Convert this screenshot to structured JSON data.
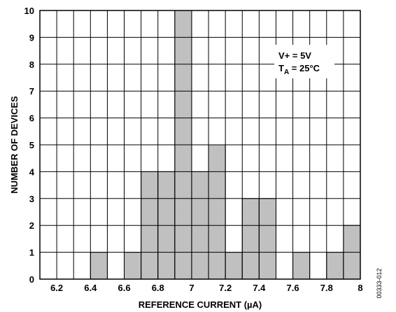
{
  "chart_data": {
    "type": "bar",
    "xlabel": "REFERENCE CURRENT (µA)",
    "ylabel": "NUMBER OF DEVICES",
    "xlim": [
      6.1,
      8.0
    ],
    "ylim": [
      0,
      10
    ],
    "bin_width": 0.1,
    "x_ticks": [
      "6.2",
      "6.4",
      "6.6",
      "6.8",
      "7",
      "7.2",
      "7.4",
      "7.6",
      "7.8",
      "8"
    ],
    "y_ticks": [
      "0",
      "1",
      "2",
      "3",
      "4",
      "5",
      "6",
      "7",
      "8",
      "9",
      "10"
    ],
    "grid": true,
    "bars": [
      {
        "x": 6.4,
        "value": 1
      },
      {
        "x": 6.6,
        "value": 1
      },
      {
        "x": 6.7,
        "value": 4
      },
      {
        "x": 6.8,
        "value": 4
      },
      {
        "x": 6.9,
        "value": 10
      },
      {
        "x": 7.0,
        "value": 4
      },
      {
        "x": 7.1,
        "value": 5
      },
      {
        "x": 7.2,
        "value": 1
      },
      {
        "x": 7.3,
        "value": 3
      },
      {
        "x": 7.4,
        "value": 3
      },
      {
        "x": 7.6,
        "value": 1
      },
      {
        "x": 7.8,
        "value": 1
      },
      {
        "x": 7.9,
        "value": 2
      }
    ],
    "bar_color": "#c0c0c0",
    "annotation": {
      "line1": "V+ = 5V",
      "line2_main": "T",
      "line2_sub": "A",
      "line2_rest": " = 25°C"
    },
    "figure_id": "00333-012"
  }
}
